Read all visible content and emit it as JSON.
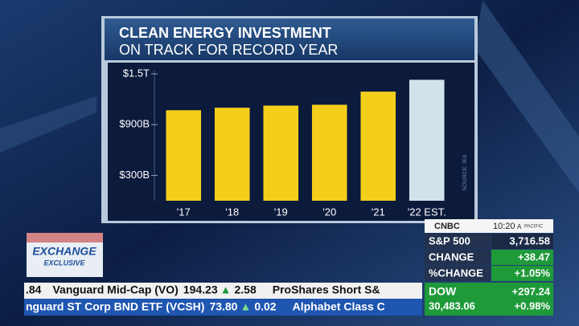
{
  "chart_data": {
    "type": "bar",
    "title": "CLEAN ENERGY INVESTMENT",
    "subtitle": "ON TRACK FOR RECORD YEAR",
    "categories": [
      "'17",
      "'18",
      "'19",
      "'20",
      "'21",
      "'22 EST."
    ],
    "values": [
      1070,
      1100,
      1125,
      1135,
      1290,
      1430
    ],
    "colors": [
      "#f3cf1c",
      "#f3cf1c",
      "#f3cf1c",
      "#f3cf1c",
      "#f3cf1c",
      "#cfe3e9"
    ],
    "ylim": [
      0,
      1500
    ],
    "yticks": [
      {
        "value": 300,
        "label": "$300B"
      },
      {
        "value": 900,
        "label": "$900B"
      },
      {
        "value": 1500,
        "label": "$1.5T"
      }
    ],
    "grid": false,
    "source": "SOURCE: IEA"
  },
  "banner": {
    "line1": "EXCHANGE",
    "line2": "EXCLUSIVE"
  },
  "ticker": {
    "row1": [
      ".84",
      "Vanguard Mid-Cap (VO)",
      "194.23",
      "▲",
      "2.58",
      "ProShares Short S&"
    ],
    "row2": [
      "nguard ST Corp BND ETF (VCSH)",
      "73.80",
      "▲",
      "0.02",
      "Alphabet Class C"
    ]
  },
  "market": {
    "network": "CNBC",
    "time": "10:20",
    "ampm": "A",
    "zone": "PACIFIC",
    "rows": [
      [
        "S&P 500",
        "3,716.58"
      ],
      [
        "CHANGE",
        "+38.47"
      ],
      [
        "%CHANGE",
        "+1.05%"
      ]
    ],
    "dow": {
      "label": "DOW",
      "change": "+297.24",
      "value": "30,483.06",
      "pct": "+0.98%"
    }
  }
}
